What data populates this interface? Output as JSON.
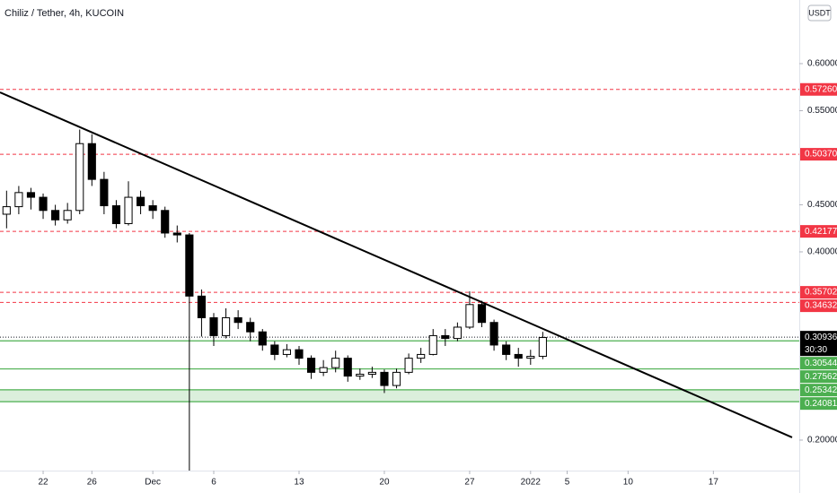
{
  "chart_data": {
    "type": "candlestick",
    "title": "Chiliz / Tether, 4h, KUCOIN",
    "currency": "USDT",
    "xlim": [
      -3.54,
      62.05
    ],
    "xticks": [
      {
        "value": 0,
        "label": "22"
      },
      {
        "value": 4,
        "label": "26"
      },
      {
        "value": 9,
        "label": "Dec"
      },
      {
        "value": 14,
        "label": "6"
      },
      {
        "value": 21,
        "label": "13"
      },
      {
        "value": 28,
        "label": "20"
      },
      {
        "value": 35,
        "label": "27"
      },
      {
        "value": 40,
        "label": "2022"
      },
      {
        "value": 43,
        "label": "5"
      },
      {
        "value": 48,
        "label": "10"
      },
      {
        "value": 55,
        "label": "17"
      }
    ],
    "ylim": [
      0.1676,
      0.6676
    ],
    "yticks": [
      {
        "value": 0.6,
        "label": "0.60000"
      },
      {
        "value": 0.55,
        "label": "0.55000"
      },
      {
        "value": 0.45,
        "label": "0.45000"
      },
      {
        "value": 0.4,
        "label": "0.40000"
      },
      {
        "value": 0.2,
        "label": "0.20000"
      }
    ],
    "up_color": "#ffffff",
    "down_color": "#000000",
    "candles": {
      "x": [
        -3,
        -2,
        -1,
        0,
        1,
        2,
        3,
        4,
        5,
        6,
        7,
        8,
        9,
        10,
        11,
        12,
        13,
        14,
        15,
        16,
        17,
        18,
        19,
        20,
        21,
        22,
        23,
        24,
        25,
        26,
        27,
        28,
        29,
        30,
        31,
        32,
        33,
        34,
        35,
        36,
        37,
        38,
        39,
        40,
        41
      ],
      "open": [
        0.44,
        0.448,
        0.463,
        0.458,
        0.444,
        0.434,
        0.444,
        0.515,
        0.477,
        0.449,
        0.43,
        0.458,
        0.449,
        0.444,
        0.42,
        0.418,
        0.353,
        0.33,
        0.311,
        0.33,
        0.325,
        0.315,
        0.301,
        0.291,
        0.296,
        0.287,
        0.272,
        0.277,
        0.287,
        0.268,
        0.27,
        0.272,
        0.258,
        0.272,
        0.287,
        0.291,
        0.311,
        0.308,
        0.32,
        0.344,
        0.325,
        0.301,
        0.291,
        0.287,
        0.289
      ],
      "high": [
        0.465,
        0.47,
        0.468,
        0.462,
        0.45,
        0.452,
        0.53,
        0.525,
        0.485,
        0.455,
        0.475,
        0.465,
        0.455,
        0.448,
        0.428,
        0.42,
        0.36,
        0.335,
        0.34,
        0.338,
        0.33,
        0.318,
        0.305,
        0.302,
        0.3,
        0.29,
        0.285,
        0.295,
        0.29,
        0.276,
        0.278,
        0.275,
        0.276,
        0.292,
        0.298,
        0.318,
        0.318,
        0.325,
        0.358,
        0.348,
        0.328,
        0.305,
        0.298,
        0.296,
        0.315
      ],
      "low": [
        0.425,
        0.44,
        0.445,
        0.435,
        0.428,
        0.43,
        0.44,
        0.47,
        0.44,
        0.425,
        0.428,
        0.44,
        0.435,
        0.415,
        0.41,
        0.167,
        0.31,
        0.3,
        0.308,
        0.318,
        0.305,
        0.295,
        0.285,
        0.288,
        0.28,
        0.265,
        0.268,
        0.272,
        0.262,
        0.264,
        0.266,
        0.25,
        0.255,
        0.27,
        0.282,
        0.29,
        0.3,
        0.305,
        0.318,
        0.32,
        0.295,
        0.285,
        0.278,
        0.28,
        0.286
      ],
      "close": [
        0.448,
        0.463,
        0.458,
        0.444,
        0.434,
        0.444,
        0.515,
        0.477,
        0.449,
        0.43,
        0.458,
        0.449,
        0.444,
        0.42,
        0.418,
        0.353,
        0.33,
        0.311,
        0.33,
        0.325,
        0.315,
        0.301,
        0.291,
        0.296,
        0.287,
        0.272,
        0.277,
        0.287,
        0.268,
        0.27,
        0.272,
        0.258,
        0.272,
        0.287,
        0.291,
        0.311,
        0.308,
        0.32,
        0.344,
        0.325,
        0.301,
        0.291,
        0.287,
        0.289,
        0.309
      ]
    },
    "trendline": {
      "x": [
        -3.54,
        61.46
      ],
      "y": [
        0.5695,
        0.2029
      ],
      "color": "#000000"
    },
    "resistance": {
      "color": "#f23645",
      "values": [
        0.5726,
        0.5037,
        0.42177,
        0.35702,
        0.34632
      ],
      "value_labels": [
        "0.57260",
        "0.50370",
        "0.42177",
        "0.35702",
        "0.34632"
      ]
    },
    "support": {
      "color": "#4caf50",
      "values": [
        0.30544,
        0.27562,
        0.25342,
        0.24081
      ],
      "value_labels": [
        "0.30544",
        "0.27562",
        "0.25342",
        "0.24081"
      ],
      "fill_between": [
        2,
        3
      ]
    },
    "last_price": {
      "value": 0.30936,
      "label": "0.30936",
      "countdown": "30:30"
    }
  }
}
